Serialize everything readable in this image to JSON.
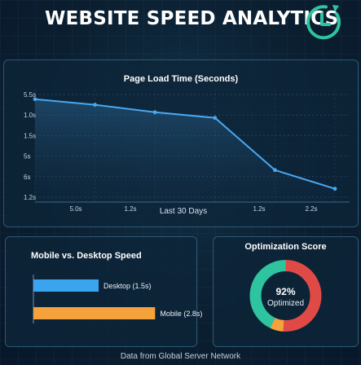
{
  "header": {
    "title": "WEBSITE SPEED ANALYTICS",
    "icon": "clock-refresh-icon"
  },
  "colors": {
    "accent": "#4aa8f0",
    "desktop_bar": "#3aa4ee",
    "mobile_bar": "#f5a23c",
    "ring_green": "#2ec4a0",
    "ring_red": "#e04a46",
    "ring_orange": "#f5a23c",
    "icon_green": "#2ec4a0"
  },
  "chart_data": [
    {
      "type": "line",
      "title": "Page Load Time (Seconds)",
      "xlabel": "Last 30 Days",
      "ylabel": "",
      "y_tick_labels": [
        "5.5s",
        "1.0s",
        "1.5s",
        "5s",
        "6s",
        "1.2s"
      ],
      "x_tick_labels": [
        "5.0s",
        "1.2s",
        "1.2s",
        "2.2s"
      ],
      "x": [
        1,
        2,
        3,
        4,
        5,
        6
      ],
      "values": [
        5.25,
        4.95,
        4.55,
        4.25,
        1.45,
        0.45
      ],
      "ylim": [
        0,
        5.5
      ],
      "grid": true
    },
    {
      "type": "bar",
      "orientation": "horizontal",
      "title": "Mobile vs. Desktop Speed",
      "categories": [
        "Desktop",
        "Mobile"
      ],
      "values": [
        1.5,
        2.8
      ],
      "labels": [
        "Desktop (1.5s)",
        "Mobile (2.8s)"
      ],
      "xlim": [
        0,
        3.0
      ]
    },
    {
      "type": "pie",
      "title": "Optimization Score",
      "center_value": "92%",
      "center_label": "Optimized",
      "score": 92,
      "segments": [
        {
          "value": 51,
          "color": "#e04a46"
        },
        {
          "value": 6,
          "color": "#f5a23c"
        },
        {
          "value": 43,
          "color": "#2ec4a0"
        }
      ]
    }
  ],
  "footer": {
    "note": "Data from Global Server Network"
  }
}
